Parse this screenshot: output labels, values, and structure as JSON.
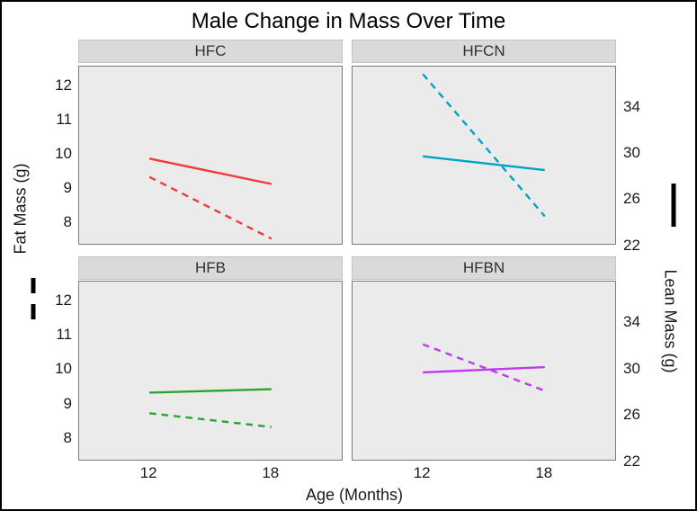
{
  "figure": {
    "title": "Male Change in Mass Over Time",
    "x_axis_title": "Age (Months)",
    "left_axis_title": "Fat Mass (g)",
    "right_axis_title": "Lean Mass (g)"
  },
  "chart_data": {
    "type": "line",
    "title": "Male Change in Mass Over Time",
    "xlabel": "Age (Months)",
    "grid": false,
    "facet_layout": "2x2",
    "x": [
      12,
      18
    ],
    "x_tick_labels": [
      "12",
      "18"
    ],
    "x_domain": [
      8.54,
      21.46
    ],
    "left_axis": {
      "label": "Fat Mass (g)",
      "ticks": [
        12,
        11,
        10,
        9,
        8
      ],
      "domain": [
        7.4,
        12.57
      ],
      "linetype": "dashed",
      "legend_marker": "vertical dashed black line in left margin"
    },
    "right_axis": {
      "label": "Lean Mass (g)",
      "ticks": [
        34,
        30,
        26,
        22
      ],
      "domain": [
        22.2,
        37.6
      ],
      "linetype": "solid",
      "legend_marker": "vertical solid black line in right margin"
    },
    "panels": [
      {
        "name": "HFC",
        "color": "#EF3B3B",
        "fat_mass": [
          9.35,
          7.55
        ],
        "lean_mass": [
          29.6,
          27.4
        ]
      },
      {
        "name": "HFCN",
        "color": "#00A3C8",
        "fat_mass": [
          12.35,
          8.2
        ],
        "lean_mass": [
          29.8,
          28.6
        ]
      },
      {
        "name": "HFB",
        "color": "#2AA52A",
        "fat_mass": [
          8.75,
          8.35
        ],
        "lean_mass": [
          28.0,
          28.3
        ]
      },
      {
        "name": "HFBN",
        "color": "#BF3BEF",
        "fat_mass": [
          10.75,
          9.4
        ],
        "lean_mass": [
          29.75,
          30.2
        ]
      }
    ],
    "style": {
      "panel_background": "#ebebeb",
      "strip_background": "#dadada",
      "panel_border": "#7a7a7a",
      "outer_border": "#000000",
      "text_color": "#1a1a1a"
    }
  }
}
